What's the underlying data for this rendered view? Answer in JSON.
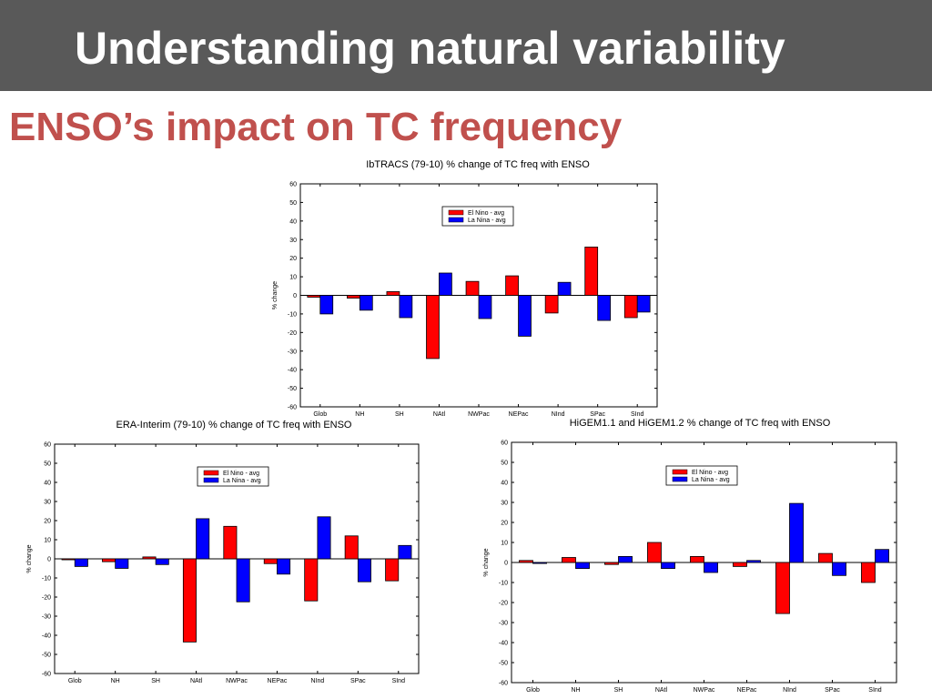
{
  "slide": {
    "title": "Understanding natural variability",
    "subtitle": "ENSO’s impact on TC frequency"
  },
  "colors": {
    "title_bar": "#595959",
    "subtitle": "#c0504d",
    "el_nino": "#ff0000",
    "la_nina": "#0000ff"
  },
  "chart_data": [
    {
      "type": "bar",
      "title": "IbTRACS (79-10) % change of TC freq with ENSO",
      "ylabel": "% change",
      "xlabel": "",
      "ylim": [
        -60,
        60
      ],
      "yticks": [
        60,
        50,
        40,
        30,
        20,
        10,
        0,
        -10,
        -20,
        -30,
        -40,
        -50,
        -60
      ],
      "categories": [
        "Glob",
        "NH",
        "SH",
        "NAtl",
        "NWPac",
        "NEPac",
        "NInd",
        "SPac",
        "SInd"
      ],
      "series": [
        {
          "name": "El Nino - avg",
          "color": "#ff0000",
          "values": [
            -1,
            -1.5,
            2,
            -34,
            7.5,
            10.5,
            -9.5,
            26,
            -12
          ]
        },
        {
          "name": "La Nina - avg",
          "color": "#0000ff",
          "values": [
            -10,
            -8,
            -12,
            12,
            -12.5,
            -22,
            7,
            -13.5,
            -9
          ]
        }
      ],
      "legend": "top-center",
      "grid": false
    },
    {
      "type": "bar",
      "title": "ERA-Interim (79-10) % change of TC freq with ENSO",
      "ylabel": "% change",
      "xlabel": "",
      "ylim": [
        -60,
        60
      ],
      "yticks": [
        60,
        50,
        40,
        30,
        20,
        10,
        0,
        -10,
        -20,
        -30,
        -40,
        -50,
        -60
      ],
      "categories": [
        "Glob",
        "NH",
        "SH",
        "NAtl",
        "NWPac",
        "NEPac",
        "NInd",
        "SPac",
        "SInd"
      ],
      "series": [
        {
          "name": "El Nino - avg",
          "color": "#ff0000",
          "values": [
            -0.5,
            -1.5,
            1,
            -43.5,
            17,
            -2.5,
            -22,
            12,
            -11.5
          ]
        },
        {
          "name": "La Nina - avg",
          "color": "#0000ff",
          "values": [
            -4,
            -5,
            -3,
            21,
            -22.5,
            -8,
            22,
            -12,
            7
          ]
        }
      ],
      "legend": "top-center",
      "grid": false
    },
    {
      "type": "bar",
      "title": "HiGEM1.1 and HiGEM1.2 % change of TC freq with ENSO",
      "ylabel": "% change",
      "xlabel": "",
      "ylim": [
        -60,
        60
      ],
      "yticks": [
        60,
        50,
        40,
        30,
        20,
        10,
        0,
        -10,
        -20,
        -30,
        -40,
        -50,
        -60
      ],
      "categories": [
        "Glob",
        "NH",
        "SH",
        "NAtl",
        "NWPac",
        "NEPac",
        "NInd",
        "SPac",
        "SInd"
      ],
      "series": [
        {
          "name": "El Nino - avg",
          "color": "#ff0000",
          "values": [
            1,
            2.5,
            -1,
            10,
            3,
            -2,
            -25.5,
            4.5,
            -10
          ]
        },
        {
          "name": "La Nina - avg",
          "color": "#0000ff",
          "values": [
            -0.5,
            -3,
            3,
            -3,
            -5,
            1,
            29.5,
            -6.5,
            6.5
          ]
        }
      ],
      "legend": "top-center",
      "grid": false
    }
  ]
}
